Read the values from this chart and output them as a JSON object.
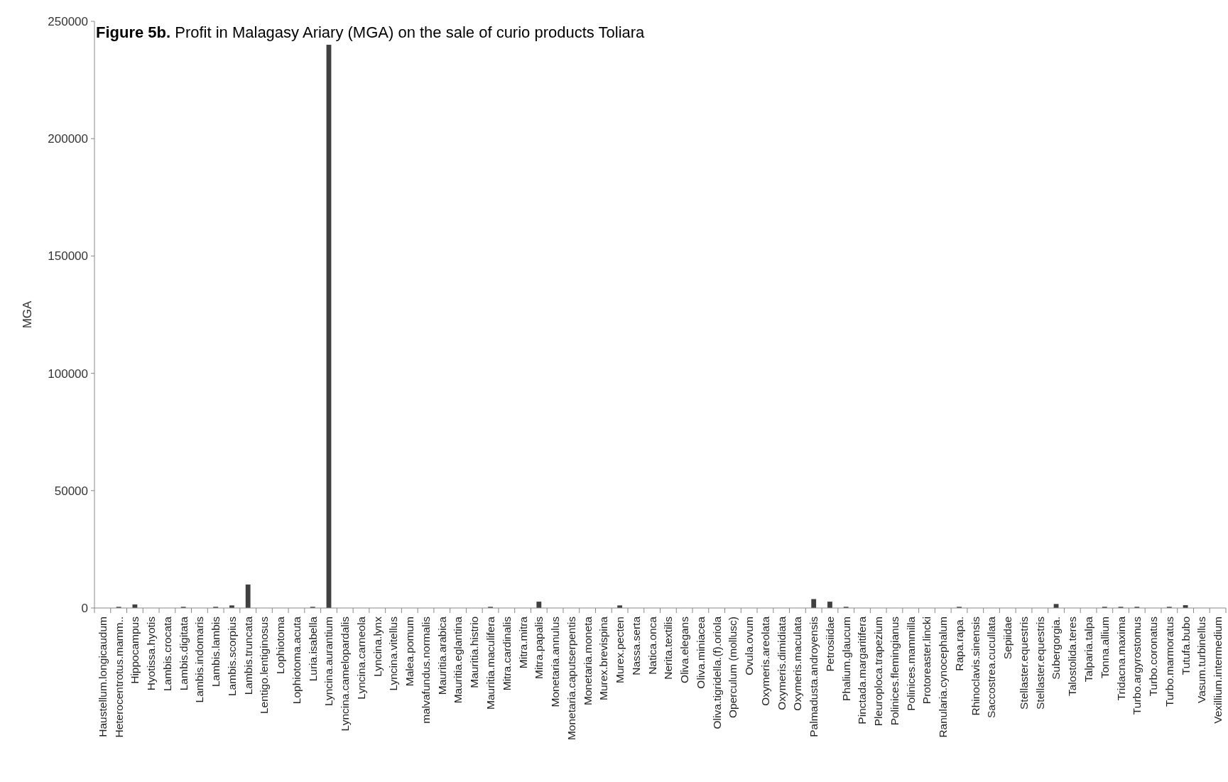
{
  "chart_data": {
    "type": "bar",
    "title": "Figure 5b. Profit in Malagasy Ariary (MGA) on the sale of curio products Toliara",
    "ylabel": "MGA",
    "categories": [
      "Haustellum.longicaudum",
      "Heterocentrotus.mamm..",
      "Hippocampus",
      "Hyotissa.hyotis",
      "Lambis.crocata",
      "Lambis.digitata",
      "Lambis.indomaris",
      "Lambis.lambis",
      "Lambis.scorpius",
      "Lambis.truncata",
      "Lentigo.lentiginosus",
      "Lophiotoma",
      "Lophiotoma.acuta",
      "Luria.isabella",
      "Lyncina.aurantium",
      "Lyncina.camelopardalis",
      "Lyncina.carneola",
      "Lyncina.lynx",
      "Lyncina.vitellus",
      "Malea.pomum",
      "malvafundus.normalis",
      "Mauritia.arabica",
      "Mauritia.eglantina",
      "Mauritia.histrio",
      "Mauritia.maculifera",
      "Mitra.cardinalis",
      "Mitra.mitra",
      "Mitra.papalis",
      "Monetaria.annulus",
      "Monetaria.caputserpentis",
      "Monetaria.moneta",
      "Murex.brevispina",
      "Murex.pecten",
      "Nassa.serta",
      "Natica.onca",
      "Nerita.textilis",
      "Oliva.elegans",
      "Oliva.miniacea",
      "Oliva.tigridella.(f).oriola",
      "Operculum (mollusc)",
      "Ovula.ovum",
      "Oxymeris.areolata",
      "Oxymeris.dimidiata",
      "Oxymeris.maculata",
      "Palmadusta.androyensis",
      "Petrosiidae",
      "Phalium.glaucum",
      "Pinctada.margaritifera",
      "Pleuroploca.trapezium",
      "Polinices.flemingianus",
      "Polinices.mammilla",
      "Protoreaster.lincki",
      "Ranularia.cynocephalum",
      "Rapa.rapa.",
      "Rhinoclavis.sinensis",
      "Saccostrea.cucullata",
      "Sepiidae",
      "Stellaster.equestris",
      "Stellaster.equestris",
      "Subergorgia.",
      "Talostolida.teres",
      "Talparia.talpa",
      "Tonna.allium",
      "Tridacna.maxima",
      "Turbo.argyrostomus",
      "Turbo.coronatus",
      "Turbo.marmoratus",
      "Tutufa.bubo",
      "Vasum.turbinellus",
      "Vexillium.intermedium"
    ],
    "values": [
      0,
      500,
      1500,
      0,
      0,
      500,
      0,
      500,
      1100,
      10000,
      0,
      0,
      0,
      500,
      240000,
      0,
      0,
      0,
      0,
      0,
      0,
      0,
      0,
      0,
      500,
      0,
      0,
      2700,
      0,
      0,
      0,
      0,
      1100,
      0,
      0,
      0,
      0,
      0,
      0,
      0,
      0,
      0,
      0,
      0,
      3800,
      2700,
      500,
      0,
      0,
      0,
      0,
      0,
      0,
      500,
      0,
      0,
      0,
      0,
      0,
      1700,
      0,
      0,
      500,
      500,
      500,
      0,
      500,
      1200,
      0,
      0
    ],
    "color": "#404040",
    "ylim": [
      0,
      250000
    ],
    "yticks": [
      0,
      50000,
      100000,
      150000,
      200000,
      250000
    ],
    "grid": false
  }
}
